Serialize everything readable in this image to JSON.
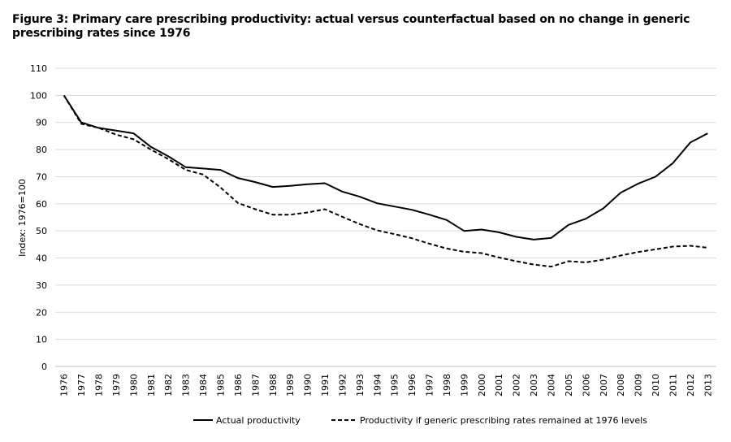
{
  "chart_data": {
    "type": "line",
    "title": "Figure 3: Primary care prescribing productivity: actual versus counterfactual based on no change in generic prescribing rates since 1976",
    "xlabel": "",
    "ylabel": "Index: 1976=100",
    "ylim": [
      0,
      110
    ],
    "yticks": [
      0,
      10,
      20,
      30,
      40,
      50,
      60,
      70,
      80,
      90,
      100,
      110
    ],
    "grid": true,
    "legend_position": "bottom",
    "categories": [
      "1976",
      "1977",
      "1978",
      "1979",
      "1980",
      "1981",
      "1982",
      "1983",
      "1984",
      "1985",
      "1986",
      "1987",
      "1988",
      "1989",
      "1990",
      "1991",
      "1992",
      "1993",
      "1994",
      "1995",
      "1996",
      "1997",
      "1998",
      "1999",
      "2000",
      "2001",
      "2002",
      "2003",
      "2004",
      "2005",
      "2006",
      "2007",
      "2008",
      "2009",
      "2010",
      "2011",
      "2012",
      "2013"
    ],
    "series": [
      {
        "name": "Actual productivity",
        "style": "solid",
        "values": [
          100,
          90,
          88,
          87,
          86,
          81,
          77.5,
          73.5,
          73,
          72.5,
          69.5,
          68,
          66.2,
          66.6,
          67.2,
          67.6,
          64.5,
          62.6,
          60.2,
          59,
          57.8,
          56,
          54,
          50,
          50.5,
          49.5,
          47.8,
          46.8,
          47.4,
          52.2,
          54.5,
          58.3,
          64.1,
          67.4,
          70,
          75,
          82.6,
          86
        ]
      },
      {
        "name": "Productivity if generic prescribing rates remained at 1976 levels",
        "style": "dashed",
        "values": [
          100,
          89.5,
          88,
          85.5,
          83.8,
          80,
          76.5,
          72.5,
          70.8,
          66,
          60.3,
          58,
          56,
          56,
          56.8,
          58,
          55.2,
          52.5,
          50.2,
          48.8,
          47.3,
          45.3,
          43.5,
          42.3,
          41.8,
          40.2,
          38.8,
          37.6,
          36.8,
          38.8,
          38.4,
          39.4,
          40.9,
          42.2,
          43.2,
          44.2,
          44.5,
          43.8
        ]
      }
    ]
  }
}
